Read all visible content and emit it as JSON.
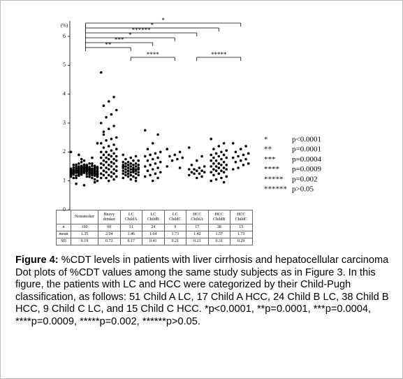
{
  "chart_data": {
    "type": "dot",
    "y_unit": "(%)",
    "ylim": [
      0,
      6
    ],
    "yticks": [
      0,
      1,
      2,
      3,
      4,
      5,
      6
    ],
    "color": "#000000",
    "categories": [
      "Nonsmoker",
      "Heavy\ndrinker",
      "LC\nChildA",
      "LC\nChildB",
      "LC\nChildC",
      "HCC\nChildA",
      "HCC\nChildB",
      "HCC\nChildC"
    ],
    "groups": [
      [
        1.35,
        1.4,
        1.3,
        1.45,
        1.25,
        1.5,
        1.2,
        1.35,
        1.4,
        1.3,
        1.55,
        1.15,
        1.35,
        1.45,
        1.25,
        1.4,
        1.3,
        1.6,
        1.1,
        1.35,
        1.38,
        1.32,
        1.42,
        1.28,
        1.48,
        1.22,
        1.52,
        1.18,
        1.36,
        1.34,
        1.44,
        1.26,
        1.46,
        1.24,
        1.56,
        1.14,
        1.37,
        1.33,
        1.41,
        1.29,
        1.35,
        1.4,
        1.3,
        1.45,
        1.25,
        1.5,
        1.2,
        1.65,
        1.05,
        1.35,
        1.4,
        1.3,
        1.45,
        1.25,
        1.5,
        1.2,
        1.7,
        1.0,
        1.35,
        1.38,
        1.32,
        1.42,
        1.28,
        1.48,
        1.22,
        1.52,
        1.18,
        1.36,
        1.34,
        1.44,
        1.26,
        1.46,
        1.24,
        1.56,
        1.14,
        1.37,
        1.33,
        1.41,
        1.29,
        1.35,
        1.4,
        1.3,
        1.45,
        1.25,
        1.5,
        1.2,
        1.35,
        1.4,
        1.3,
        1.55,
        1.15,
        1.35,
        1.45,
        1.25,
        1.4,
        1.3,
        1.6,
        1.1,
        1.35,
        1.38,
        1.32,
        1.42,
        1.28,
        1.48,
        1.22,
        1.52,
        1.18,
        1.36,
        1.34,
        1.44,
        1.26,
        1.46,
        1.24,
        1.75,
        0.95,
        1.37,
        1.33,
        1.41,
        1.29,
        1.35,
        1.4,
        1.3,
        1.45,
        1.25,
        1.5,
        1.2,
        1.35,
        1.8,
        0.9,
        1.3,
        1.55,
        1.15,
        1.35,
        1.45,
        1.25,
        1.4,
        1.3,
        1.6,
        1.1,
        1.35,
        1.38,
        1.32,
        1.42,
        1.28,
        1.48,
        1.22,
        1.52,
        1.18,
        1.9,
        1.34,
        1.44,
        1.26,
        1.46,
        1.24,
        2.0,
        0.85,
        2.3,
        1.33,
        1.41,
        1.29
      ],
      [
        4.75,
        3.9,
        3.75,
        3.6,
        3.45,
        3.3,
        3.2,
        3.0,
        2.9,
        2.8,
        2.6,
        2.5,
        2.45,
        2.4,
        2.3,
        2.25,
        2.2,
        2.15,
        2.1,
        2.05,
        2.0,
        2.0,
        1.95,
        1.9,
        1.9,
        1.85,
        1.85,
        1.8,
        1.8,
        1.75,
        1.75,
        1.7,
        1.7,
        1.65,
        1.65,
        1.6,
        1.6,
        1.55,
        1.55,
        1.5,
        1.5,
        1.45,
        1.45,
        1.4,
        1.4,
        1.35,
        1.35,
        1.3,
        1.3,
        1.25,
        1.25,
        1.2,
        1.2,
        1.15,
        1.15,
        1.1,
        1.1,
        1.05,
        1.0,
        2.7
      ],
      [
        1.9,
        1.85,
        1.8,
        1.75,
        1.7,
        1.7,
        1.65,
        1.65,
        1.6,
        1.6,
        1.6,
        1.55,
        1.55,
        1.55,
        1.5,
        1.5,
        1.5,
        1.5,
        1.45,
        1.45,
        1.45,
        1.45,
        1.4,
        1.4,
        1.4,
        1.4,
        1.35,
        1.35,
        1.35,
        1.35,
        1.3,
        1.3,
        1.3,
        1.3,
        1.25,
        1.25,
        1.25,
        1.2,
        1.2,
        1.2,
        1.15,
        1.15,
        1.1,
        1.1,
        1.05,
        1.5,
        1.45,
        1.4,
        1.35,
        1.55,
        1.0
      ],
      [
        2.75,
        2.6,
        2.3,
        2.1,
        2.0,
        1.95,
        1.9,
        1.85,
        1.8,
        1.75,
        1.7,
        1.65,
        1.6,
        1.55,
        1.5,
        1.45,
        1.4,
        1.35,
        1.3,
        1.25,
        1.2,
        1.15,
        1.1,
        1.0
      ],
      [
        2.1,
        2.0,
        1.9,
        1.85,
        1.8,
        1.75,
        1.7,
        1.5,
        1.45
      ],
      [
        2.15,
        1.85,
        1.7,
        1.55,
        1.5,
        1.45,
        1.4,
        1.4,
        1.35,
        1.35,
        1.3,
        1.3,
        1.25,
        1.25,
        1.2,
        1.15,
        1.1
      ],
      [
        2.45,
        2.3,
        2.2,
        2.1,
        2.05,
        2.0,
        1.95,
        1.9,
        1.9,
        1.85,
        1.8,
        1.8,
        1.75,
        1.7,
        1.7,
        1.65,
        1.6,
        1.6,
        1.55,
        1.55,
        1.5,
        1.5,
        1.45,
        1.45,
        1.4,
        1.4,
        1.35,
        1.35,
        1.3,
        1.3,
        1.25,
        1.2,
        1.15,
        1.1,
        1.05,
        1.0,
        0.95,
        1.6
      ],
      [
        2.3,
        2.2,
        2.1,
        2.0,
        1.95,
        1.9,
        1.85,
        1.8,
        1.75,
        1.7,
        1.65,
        1.6,
        1.55,
        1.45,
        1.4
      ]
    ],
    "table": [
      {
        "label": "n",
        "values": [
          160,
          60,
          51,
          24,
          9,
          17,
          38,
          15
        ]
      },
      {
        "label": "mean",
        "values": [
          1.35,
          2.04,
          1.46,
          1.64,
          1.73,
          1.42,
          1.57,
          1.73
        ]
      },
      {
        "label": "SD",
        "values": [
          0.19,
          0.72,
          0.17,
          0.41,
          0.21,
          0.23,
          0.31,
          0.29
        ]
      }
    ],
    "comparisons": [
      {
        "from": 0,
        "to": 7,
        "label": "*"
      },
      {
        "from": 0,
        "to": 6,
        "label": "*"
      },
      {
        "from": 0,
        "to": 5,
        "label": "******"
      },
      {
        "from": 0,
        "to": 4,
        "label": "*"
      },
      {
        "from": 0,
        "to": 3,
        "label": "***"
      },
      {
        "from": 0,
        "to": 2,
        "label": "**"
      },
      {
        "from": 2,
        "to": 4,
        "label": "****"
      },
      {
        "from": 5,
        "to": 7,
        "label": "*****"
      }
    ],
    "legend": [
      {
        "symbol": "*",
        "text": "p<0.0001"
      },
      {
        "symbol": "**",
        "text": "p=0.0001"
      },
      {
        "symbol": "***",
        "text": "p=0.0004"
      },
      {
        "symbol": "****",
        "text": "p=0.0009"
      },
      {
        "symbol": "*****",
        "text": "p=0.002"
      },
      {
        "symbol": "******",
        "text": "p>0.05"
      }
    ]
  },
  "caption": {
    "label": "Figure 4:",
    "title": "%CDT levels in patients with liver cirrhosis and hepatocellular carcinoma",
    "text": "Dot plots of %CDT values among the same study subjects as in Figure 3. In this figure, the patients with LC and HCC were categorized by their Child-Pugh classification, as follows: 51 Child A LC, 17 Child A HCC, 24 Child B LC, 38 Child B HCC, 9 Child C LC, and 15 Child C HCC. *p<0.0001, **p=0.0001, ***p=0.0004, ****p=0.0009, *****p=0.002, ******p>0.05."
  }
}
